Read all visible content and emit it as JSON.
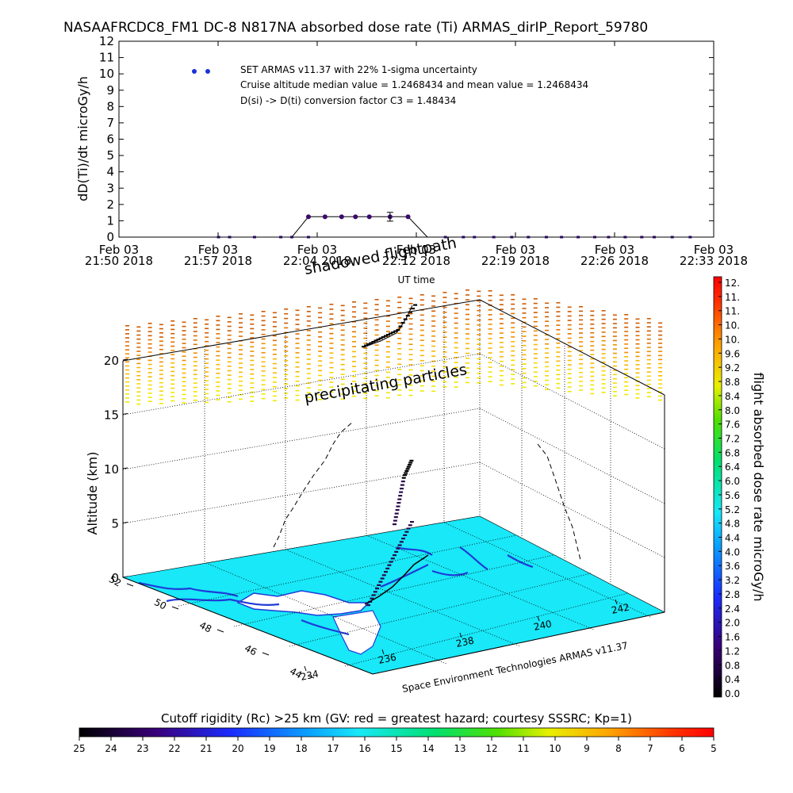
{
  "title": "NASAAFRCDC8_FM1 DC-8   N817NA absorbed dose rate (Ti) ARMAS_dirIP_Report_59780",
  "chart_data": [
    {
      "type": "scatter",
      "ylabel": "dD(Ti)/dt microGy/h",
      "xlabel": "UT time",
      "ylim": [
        0,
        12
      ],
      "yticks": [
        "0",
        "1",
        "2",
        "3",
        "4",
        "5",
        "6",
        "7",
        "8",
        "9",
        "10",
        "11",
        "12"
      ],
      "xticks": [
        {
          "line1": "Feb 03",
          "line2": "21:50 2018"
        },
        {
          "line1": "Feb 03",
          "line2": "21:57 2018"
        },
        {
          "line1": "Feb 03",
          "line2": "22:04 2018"
        },
        {
          "line1": "Feb 03",
          "line2": "22:12 2018"
        },
        {
          "line1": "Feb 03",
          "line2": "22:19 2018"
        },
        {
          "line1": "Feb 03",
          "line2": "22:26 2018"
        },
        {
          "line1": "Feb 03",
          "line2": "22:33 2018"
        }
      ],
      "xrange_minutes": [
        0,
        43
      ],
      "legend": {
        "line1": "SET ARMAS v11.37 with 22% 1-sigma uncertainty",
        "line2": "Cruise altitude median value = 1.2468434 and mean value = 1.2468434",
        "line3": "D(si) -> D(ti) conversion factor C3 = 1.48434"
      },
      "points_flat": [
        7.2,
        8.0,
        9.8,
        11.7,
        12.5,
        13.7,
        23.6,
        24.9,
        25.7,
        27.1,
        28.4,
        29.6,
        30.9,
        32.0,
        33.2,
        34.4,
        35.4,
        36.6,
        37.8,
        38.7,
        40.0,
        41.3
      ],
      "points_cruise": [
        12.5,
        13.7,
        14.9,
        16.1,
        17.1,
        18.1,
        19.6,
        20.9,
        22.3
      ],
      "cruise_value": 1.2468434,
      "errorbar": {
        "x": 19.6,
        "value": 1.2468434,
        "sigma": 0.27
      },
      "series_color": "#2a0a5a"
    },
    {
      "type": "3d-trajectory",
      "zlabel": "Altitude (km)",
      "zticks": [
        "0",
        "5",
        "10",
        "15",
        "20"
      ],
      "lat_ticks": [
        "52",
        "50",
        "48",
        "46",
        "44"
      ],
      "lon_ticks": [
        "234",
        "236",
        "238",
        "240",
        "242"
      ],
      "annotations": {
        "precip": "precipitating particles",
        "shadow": "shadowed flightpath",
        "credit": "Space Environment Technologies ARMAS v11.37"
      }
    }
  ],
  "colorbar_right": {
    "label": "flight absorbed dose rate microGy/h",
    "ticks": [
      "12.",
      "11.",
      "11.",
      "10.",
      "10.",
      "9.6",
      "9.2",
      "8.8",
      "8.4",
      "8.0",
      "7.6",
      "7.2",
      "6.8",
      "6.4",
      "6.0",
      "5.6",
      "5.2",
      "4.8",
      "4.4",
      "4.0",
      "3.6",
      "3.2",
      "2.8",
      "2.4",
      "2.0",
      "1.6",
      "1.2",
      "0.8",
      "0.4",
      "0.0"
    ]
  },
  "colorbar_bottom": {
    "label": "Cutoff rigidity (Rc) >25 km (GV: red = greatest hazard; courtesy SSSRC; Kp=1)",
    "ticks": [
      "25",
      "24",
      "23",
      "22",
      "21",
      "20",
      "19",
      "18",
      "17",
      "16",
      "15",
      "14",
      "13",
      "12",
      "11",
      "10",
      "9",
      "8",
      "7",
      "6",
      "5"
    ]
  },
  "colors": {
    "ocean": "#18e8f8",
    "coast": "#1f3bd8",
    "track": "#000000",
    "cruise_marker": "#3a0a6e"
  }
}
